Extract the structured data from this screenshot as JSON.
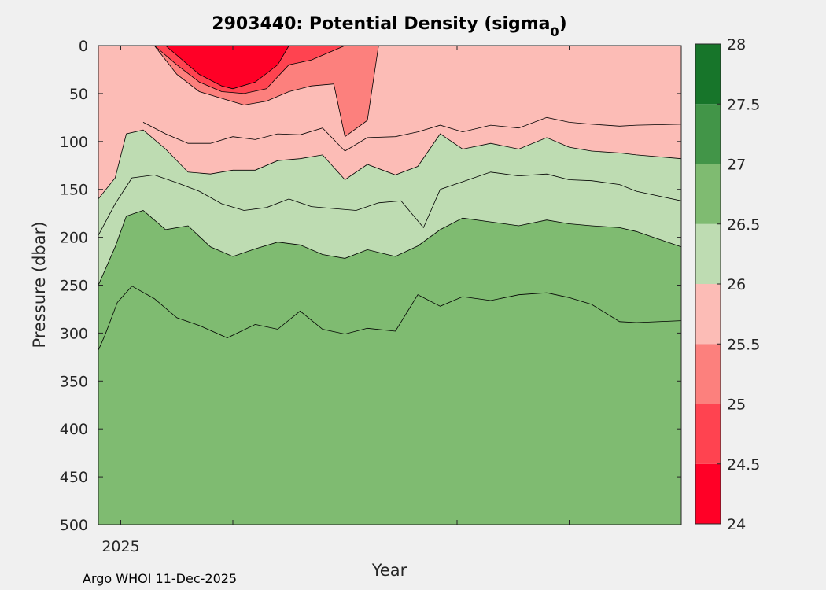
{
  "chart_data": {
    "type": "contour",
    "title_main": "2903440: Potential Density (sigma",
    "title_sub": "0",
    "title_close": ")",
    "xlabel": "Year",
    "ylabel": "Pressure (dbar)",
    "xlim": [
      2024.8,
      2030.0
    ],
    "ylim": [
      0,
      500
    ],
    "y_reversed": true,
    "x_ticks": [
      {
        "value": 2025,
        "label": "2025"
      },
      {
        "value": 2026,
        "label": ""
      },
      {
        "value": 2027,
        "label": ""
      },
      {
        "value": 2028,
        "label": ""
      },
      {
        "value": 2029,
        "label": ""
      }
    ],
    "y_ticks": [
      0,
      50,
      100,
      150,
      200,
      250,
      300,
      350,
      400,
      450,
      500
    ],
    "y_tick_labels": [
      "0",
      "50",
      "100",
      "150",
      "200",
      "250",
      "300",
      "350",
      "400",
      "450",
      "500"
    ],
    "colorbar": {
      "levels": [
        24,
        24.5,
        25,
        25.5,
        26,
        26.5,
        27,
        27.5,
        28
      ],
      "labels": [
        "24",
        "24.5",
        "25",
        "25.5",
        "26",
        "26.5",
        "27",
        "27.5",
        "28"
      ],
      "colors": [
        "#ff0026",
        "#ff4350",
        "#fc807d",
        "#fcbcb6",
        "#bedcb2",
        "#7fbb71",
        "#429548",
        "#17752a"
      ]
    },
    "background_fill_color": "#7fbb71",
    "contours": [
      {
        "level": 26.5,
        "fill_color": "#7fbb71",
        "depths": [
          [
            2024.8,
            318
          ],
          [
            2024.86,
            302
          ],
          [
            2024.97,
            268
          ],
          [
            2025.1,
            251
          ],
          [
            2025.3,
            264
          ],
          [
            2025.5,
            284
          ],
          [
            2025.7,
            292
          ],
          [
            2025.95,
            305
          ],
          [
            2026.2,
            291
          ],
          [
            2026.4,
            296
          ],
          [
            2026.6,
            277
          ],
          [
            2026.8,
            296
          ],
          [
            2027.0,
            301
          ],
          [
            2027.2,
            295
          ],
          [
            2027.45,
            298
          ],
          [
            2027.65,
            260
          ],
          [
            2027.85,
            272
          ],
          [
            2028.05,
            262
          ],
          [
            2028.3,
            266
          ],
          [
            2028.55,
            260
          ],
          [
            2028.8,
            258
          ],
          [
            2029.0,
            263
          ],
          [
            2029.2,
            270
          ],
          [
            2029.45,
            288
          ],
          [
            2029.6,
            289
          ],
          [
            2030.0,
            287
          ]
        ]
      },
      {
        "level": 26.0,
        "fill_color": "#bedcb2",
        "depths": [
          [
            2024.8,
            250
          ],
          [
            2024.95,
            210
          ],
          [
            2025.05,
            178
          ],
          [
            2025.2,
            172
          ],
          [
            2025.4,
            192
          ],
          [
            2025.6,
            188
          ],
          [
            2025.8,
            210
          ],
          [
            2026.0,
            220
          ],
          [
            2026.2,
            212
          ],
          [
            2026.4,
            205
          ],
          [
            2026.6,
            208
          ],
          [
            2026.8,
            218
          ],
          [
            2027.0,
            222
          ],
          [
            2027.2,
            213
          ],
          [
            2027.45,
            220
          ],
          [
            2027.65,
            209
          ],
          [
            2027.85,
            192
          ],
          [
            2028.05,
            180
          ],
          [
            2028.3,
            184
          ],
          [
            2028.55,
            188
          ],
          [
            2028.8,
            182
          ],
          [
            2029.0,
            186
          ],
          [
            2029.2,
            188
          ],
          [
            2029.45,
            190
          ],
          [
            2029.6,
            194
          ],
          [
            2030.0,
            210
          ]
        ]
      },
      {
        "level": 25.8,
        "fill_color": "#bedcb2",
        "depths": [
          [
            2024.8,
            198
          ],
          [
            2024.95,
            165
          ],
          [
            2025.1,
            138
          ],
          [
            2025.3,
            135
          ],
          [
            2025.5,
            143
          ],
          [
            2025.7,
            152
          ],
          [
            2025.9,
            165
          ],
          [
            2026.1,
            172
          ],
          [
            2026.3,
            169
          ],
          [
            2026.5,
            160
          ],
          [
            2026.7,
            168
          ],
          [
            2026.9,
            170
          ],
          [
            2027.1,
            172
          ],
          [
            2027.3,
            164
          ],
          [
            2027.5,
            162
          ],
          [
            2027.7,
            190
          ],
          [
            2027.85,
            150
          ],
          [
            2028.05,
            142
          ],
          [
            2028.3,
            132
          ],
          [
            2028.55,
            136
          ],
          [
            2028.8,
            134
          ],
          [
            2029.0,
            140
          ],
          [
            2029.2,
            141
          ],
          [
            2029.45,
            145
          ],
          [
            2029.6,
            152
          ],
          [
            2030.0,
            162
          ]
        ]
      },
      {
        "level": 25.5,
        "fill_color": "#fcbcb6",
        "depths": [
          [
            2024.8,
            160
          ],
          [
            2024.95,
            138
          ],
          [
            2025.05,
            92
          ],
          [
            2025.2,
            88
          ],
          [
            2025.4,
            108
          ],
          [
            2025.6,
            132
          ],
          [
            2025.8,
            134
          ],
          [
            2026.0,
            130
          ],
          [
            2026.2,
            130
          ],
          [
            2026.4,
            120
          ],
          [
            2026.6,
            118
          ],
          [
            2026.8,
            114
          ],
          [
            2027.0,
            140
          ],
          [
            2027.2,
            124
          ],
          [
            2027.45,
            135
          ],
          [
            2027.65,
            126
          ],
          [
            2027.85,
            92
          ],
          [
            2028.05,
            108
          ],
          [
            2028.3,
            102
          ],
          [
            2028.55,
            108
          ],
          [
            2028.8,
            96
          ],
          [
            2029.0,
            106
          ],
          [
            2029.2,
            110
          ],
          [
            2029.45,
            112
          ],
          [
            2029.6,
            114
          ],
          [
            2030.0,
            118
          ]
        ]
      },
      {
        "level": 25.2,
        "fill_color": "#fcbcb6",
        "depths": [
          [
            2025.2,
            80
          ],
          [
            2025.4,
            92
          ],
          [
            2025.6,
            102
          ],
          [
            2025.8,
            102
          ],
          [
            2026.0,
            95
          ],
          [
            2026.2,
            98
          ],
          [
            2026.4,
            92
          ],
          [
            2026.6,
            93
          ],
          [
            2026.8,
            86
          ],
          [
            2027.0,
            110
          ],
          [
            2027.2,
            96
          ],
          [
            2027.45,
            95
          ],
          [
            2027.65,
            90
          ],
          [
            2027.85,
            83
          ],
          [
            2028.05,
            90
          ],
          [
            2028.3,
            83
          ],
          [
            2028.55,
            86
          ],
          [
            2028.8,
            75
          ],
          [
            2029.0,
            80
          ],
          [
            2029.2,
            82
          ],
          [
            2029.45,
            84
          ],
          [
            2029.6,
            83
          ],
          [
            2030.0,
            82
          ]
        ]
      },
      {
        "level": 25.0,
        "fill_color": "#fc807d",
        "depths": [
          [
            2025.3,
            0
          ],
          [
            2025.5,
            30
          ],
          [
            2025.7,
            48
          ],
          [
            2025.9,
            55
          ],
          [
            2026.1,
            62
          ],
          [
            2026.3,
            58
          ],
          [
            2026.5,
            48
          ],
          [
            2026.7,
            42
          ],
          [
            2026.9,
            40
          ],
          [
            2027.0,
            95
          ],
          [
            2027.2,
            78
          ],
          [
            2027.3,
            0
          ]
        ]
      },
      {
        "level": 24.5,
        "fill_color": "#ff4350",
        "depths": [
          [
            2025.3,
            0
          ],
          [
            2025.5,
            20
          ],
          [
            2025.7,
            38
          ],
          [
            2025.9,
            48
          ],
          [
            2026.1,
            50
          ],
          [
            2026.3,
            45
          ],
          [
            2026.5,
            20
          ],
          [
            2026.7,
            15
          ],
          [
            2026.9,
            5
          ],
          [
            2027.0,
            0
          ]
        ]
      },
      {
        "level": 24.0,
        "fill_color": "#ff0026",
        "depths": [
          [
            2025.4,
            0
          ],
          [
            2025.7,
            30
          ],
          [
            2025.9,
            42
          ],
          [
            2026.0,
            45
          ],
          [
            2026.2,
            38
          ],
          [
            2026.4,
            20
          ],
          [
            2026.5,
            0
          ]
        ]
      }
    ],
    "footer": "Argo WHOI 11-Dec-2025"
  }
}
